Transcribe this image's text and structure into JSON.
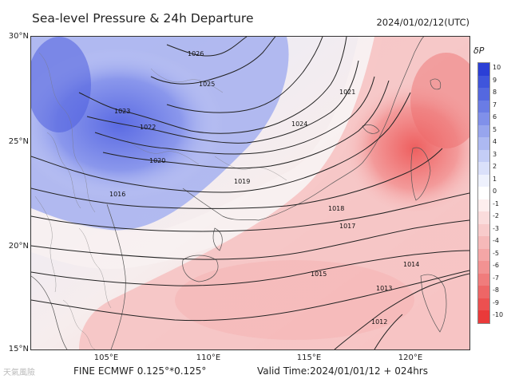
{
  "title": "Sea-level Pressure & 24h Departure",
  "datetime": "2024/01/02/12(UTC)",
  "lat_ticks": [
    "30°N",
    "25°N",
    "20°N",
    "15°N"
  ],
  "lon_ticks": [
    "105°E",
    "110°E",
    "115°E",
    "120°E"
  ],
  "colorbar": {
    "title": "δP",
    "labels": [
      "10",
      "9",
      "8",
      "7",
      "6",
      "5",
      "4",
      "3",
      "2",
      "1",
      "0",
      "-1",
      "-2",
      "-3",
      "-4",
      "-5",
      "-6",
      "-7",
      "-8",
      "-9",
      "-10"
    ],
    "colors": [
      "#2b3fd6",
      "#3f55dc",
      "#5468e0",
      "#6a7ce5",
      "#8090ea",
      "#97a5ee",
      "#adb9f2",
      "#c4cdf6",
      "#dae0fa",
      "#eef1fd",
      "#ffffff",
      "#fdeeee",
      "#fadcdc",
      "#f8cbcb",
      "#f6b9b9",
      "#f4a6a6",
      "#f29292",
      "#f07c7c",
      "#ee6666",
      "#ec5050",
      "#ea3a3a"
    ]
  },
  "isobars": [
    "1026",
    "1025",
    "1024",
    "1023",
    "1022",
    "1021",
    "1020",
    "1019",
    "1018",
    "1017",
    "1016",
    "1015",
    "1014",
    "1013",
    "1012"
  ],
  "footer": {
    "model": "FINE ECMWF 0.125°*0.125°",
    "valid": "Valid Time:2024/01/01/12 + 024hrs"
  },
  "watermark": "天氣風險"
}
